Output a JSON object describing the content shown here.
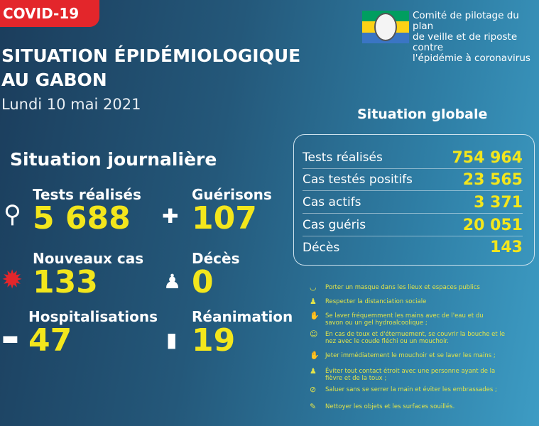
{
  "tag": "COVID-19",
  "title": {
    "line1": "SITUATION ÉPIDÉMIOLOGIQUE",
    "line2": "AU GABON",
    "date": "Lundi 10 mai 2021"
  },
  "committee": {
    "line1": "Comité de pilotage du plan",
    "line2": "de veille et de riposte contre",
    "line3": "l'épidémie à coronavirus"
  },
  "colors": {
    "accent": "#f3e61c",
    "tag": "#e3262b",
    "flag_green": "#009e60",
    "flag_yellow": "#fcd116",
    "flag_blue": "#3a75c4"
  },
  "daily": {
    "heading": "Situation journalière",
    "items": [
      {
        "label": "Tests réalisés",
        "value": "5 688",
        "icon": "magnifier-icon"
      },
      {
        "label": "Guérisons",
        "value": "107",
        "icon": "shield-cross-icon"
      },
      {
        "label": "Nouveaux cas",
        "value": "133",
        "icon": "virus-icon"
      },
      {
        "label": "Décès",
        "value": "0",
        "icon": "person-cross-icon"
      },
      {
        "label": "Hospitalisations",
        "value": "47",
        "icon": "hospital-bed-icon"
      },
      {
        "label": "Réanimation",
        "value": "19",
        "icon": "oxygen-tank-icon"
      }
    ]
  },
  "global": {
    "heading": "Situation globale",
    "rows": [
      {
        "label": "Tests réalisés",
        "value": "754 964"
      },
      {
        "label": "Cas testés positifs",
        "value": "23 565"
      },
      {
        "label": "Cas actifs",
        "value": "3 371"
      },
      {
        "label": "Cas guéris",
        "value": "20 051"
      },
      {
        "label": "Décès",
        "value": "143"
      }
    ]
  },
  "tips": [
    {
      "text": "Porter un masque dans les lieux et espaces publics",
      "icon": "mask-icon"
    },
    {
      "text": "Respecter la distanciation sociale",
      "icon": "distance-icon"
    },
    {
      "text": "Se laver fréquemment les mains avec de l'eau et du savon ou un gel hydroalcoolique ;",
      "icon": "handwash-icon"
    },
    {
      "text": "En cas de toux et d'éternuement, se couvrir la bouche et le nez avec le coude fléchi ou un mouchoir.",
      "icon": "cough-icon"
    },
    {
      "text": "Jeter immédiatement le mouchoir et se laver les mains ;",
      "icon": "handwash-icon"
    },
    {
      "text": "Éviter tout contact étroit avec une personne ayant de la fièvre et de la toux ;",
      "icon": "distance-icon"
    },
    {
      "text": "Saluer sans se serrer la main et éviter les embrassades ;",
      "icon": "no-handshake-icon"
    },
    {
      "text": "Nettoyer les objets et les surfaces souillés.",
      "icon": "cleaning-icon"
    }
  ]
}
